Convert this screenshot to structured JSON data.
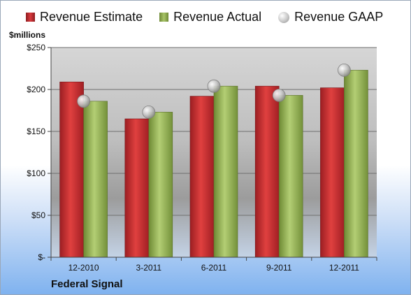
{
  "legend": {
    "estimate": "Revenue Estimate",
    "actual": "Revenue Actual",
    "gaap": "Revenue GAAP"
  },
  "unit_label": "$millions",
  "company": "Federal Signal",
  "colors": {
    "estimate": "#c8272b",
    "actual": "#97b556",
    "gaap": "#c0c0c0"
  },
  "chart_data": {
    "type": "bar",
    "categories": [
      "12-2010",
      "3-2011",
      "6-2011",
      "9-2011",
      "12-2011"
    ],
    "series": [
      {
        "name": "Revenue Estimate",
        "values": [
          209,
          165,
          192,
          204,
          202
        ]
      },
      {
        "name": "Revenue Actual",
        "values": [
          186,
          173,
          204,
          193,
          223
        ]
      },
      {
        "name": "Revenue GAAP",
        "values": [
          186,
          173,
          204,
          193,
          223
        ]
      }
    ],
    "ylim": [
      0,
      250
    ],
    "yticks": [
      0,
      50,
      100,
      150,
      200,
      250
    ],
    "ytick_labels": [
      "$-",
      "$50",
      "$100",
      "$150",
      "$200",
      "$250"
    ],
    "ylabel": "$millions",
    "grid": true,
    "legend_position": "top"
  }
}
